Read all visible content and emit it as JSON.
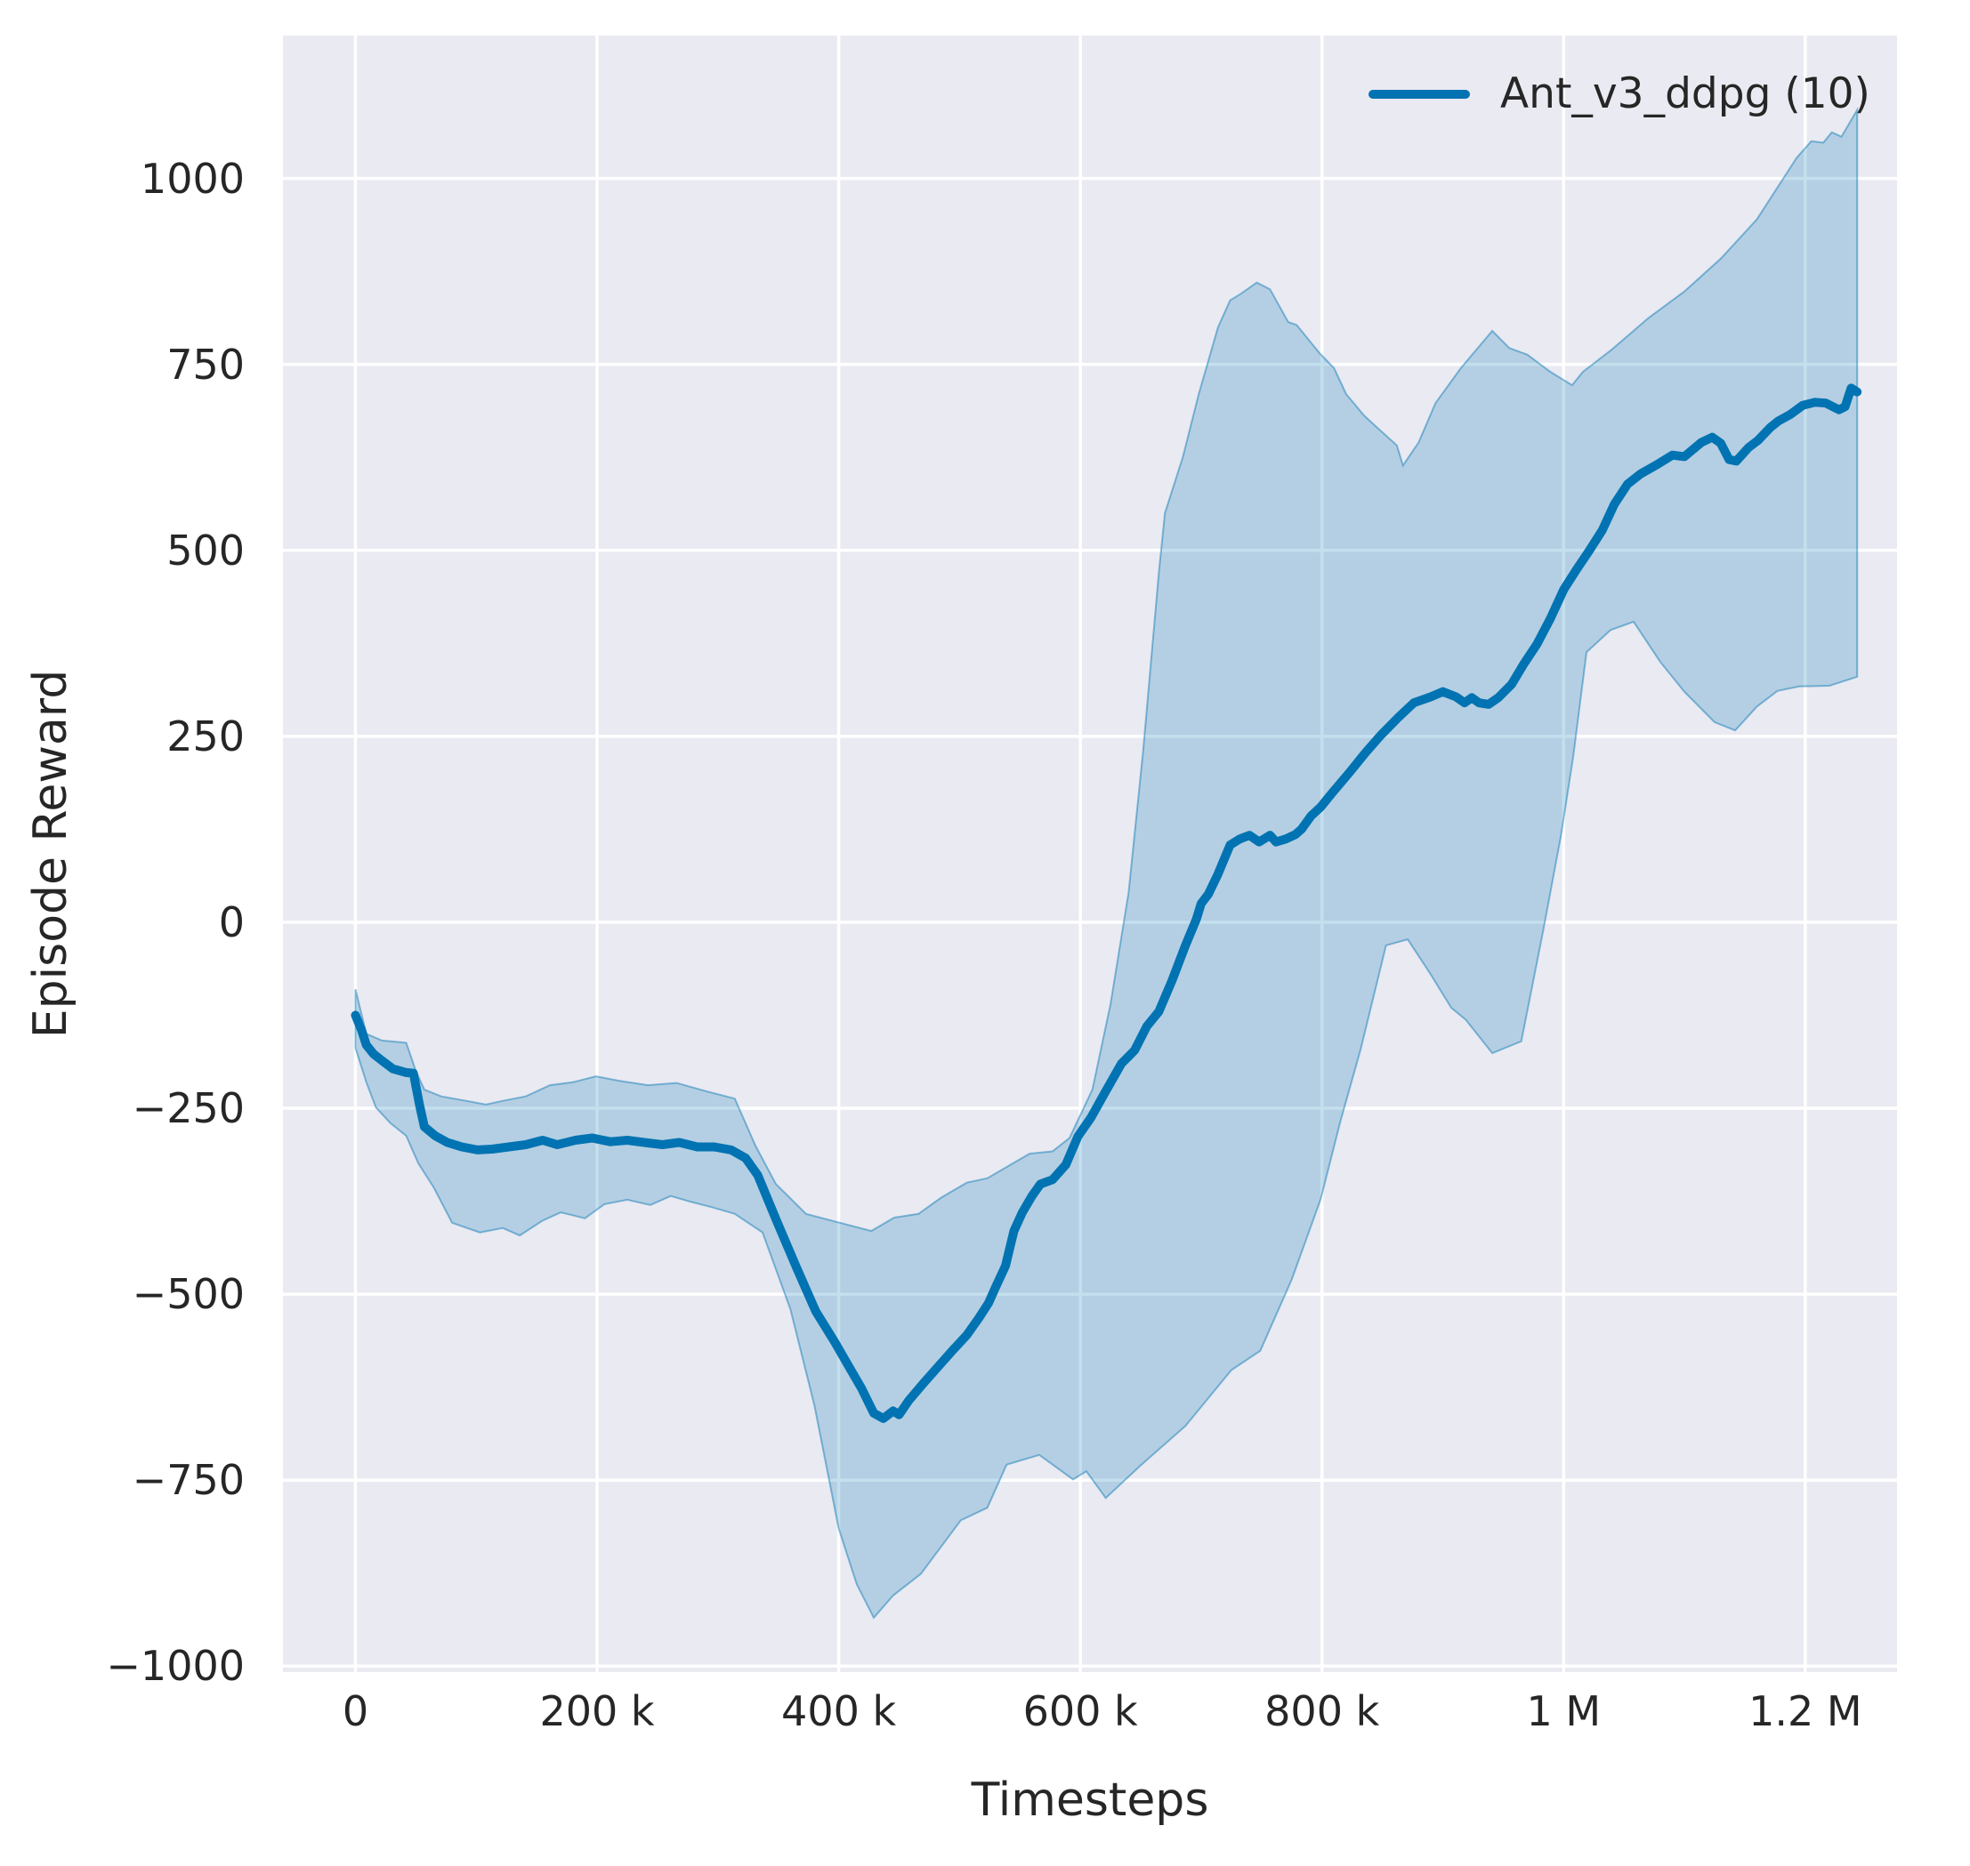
{
  "colors": {
    "line": "#0173b2",
    "band_fill_opacity": 0.23,
    "band_edge_opacity": 0.45,
    "axes_background": "#eaeaf2",
    "grid": "#ffffff",
    "text": "#262626",
    "figure_background": "#ffffff"
  },
  "chart_data": {
    "type": "line",
    "title": "",
    "xlabel": "Timesteps",
    "ylabel": "Episode Reward",
    "grid": true,
    "legend_position": "top-right",
    "legend": [
      {
        "label": "Ant_v3_ddpg (10)",
        "color": "#0173b2"
      }
    ],
    "xlim": [
      -60000,
      1276000
    ],
    "ylim": [
      -1008,
      1192
    ],
    "x_ticks": [
      {
        "value": 0,
        "label": "0"
      },
      {
        "value": 200000,
        "label": "200 k"
      },
      {
        "value": 400000,
        "label": "400 k"
      },
      {
        "value": 600000,
        "label": "600 k"
      },
      {
        "value": 800000,
        "label": "800 k"
      },
      {
        "value": 1000000,
        "label": "1 M"
      },
      {
        "value": 1200000,
        "label": "1.2 M"
      }
    ],
    "y_ticks": [
      {
        "value": 1000,
        "label": "1000"
      },
      {
        "value": 750,
        "label": "750"
      },
      {
        "value": 500,
        "label": "500"
      },
      {
        "value": 250,
        "label": "250"
      },
      {
        "value": 0,
        "label": "0"
      },
      {
        "value": -250,
        "label": "−250"
      },
      {
        "value": -500,
        "label": "−500"
      },
      {
        "value": -750,
        "label": "−750"
      },
      {
        "value": -1000,
        "label": "−1000"
      }
    ],
    "series": [
      {
        "name": "Ant_v3_ddpg (10)",
        "color": "#0173b2",
        "mean": [
          [
            0,
            -125
          ],
          [
            5000,
            -145
          ],
          [
            9000,
            -165
          ],
          [
            15000,
            -177
          ],
          [
            22000,
            -186
          ],
          [
            31000,
            -197
          ],
          [
            42000,
            -202
          ],
          [
            48000,
            -203
          ],
          [
            53000,
            -245
          ],
          [
            57000,
            -275
          ],
          [
            66000,
            -287
          ],
          [
            76000,
            -296
          ],
          [
            88000,
            -302
          ],
          [
            101000,
            -306
          ],
          [
            113000,
            -305
          ],
          [
            127000,
            -302
          ],
          [
            141000,
            -299
          ],
          [
            155000,
            -293
          ],
          [
            167000,
            -299
          ],
          [
            182000,
            -293
          ],
          [
            196000,
            -290
          ],
          [
            211000,
            -295
          ],
          [
            225000,
            -293
          ],
          [
            239000,
            -296
          ],
          [
            254000,
            -299
          ],
          [
            268000,
            -296
          ],
          [
            283000,
            -302
          ],
          [
            297000,
            -302
          ],
          [
            311000,
            -306
          ],
          [
            323000,
            -317
          ],
          [
            333000,
            -340
          ],
          [
            348000,
            -399
          ],
          [
            365000,
            -464
          ],
          [
            381000,
            -523
          ],
          [
            397000,
            -565
          ],
          [
            408000,
            -596
          ],
          [
            419000,
            -627
          ],
          [
            429000,
            -660
          ],
          [
            437000,
            -667
          ],
          [
            445000,
            -657
          ],
          [
            450000,
            -662
          ],
          [
            458000,
            -643
          ],
          [
            470000,
            -620
          ],
          [
            482000,
            -598
          ],
          [
            494000,
            -576
          ],
          [
            506000,
            -555
          ],
          [
            516000,
            -532
          ],
          [
            524000,
            -512
          ],
          [
            530000,
            -490
          ],
          [
            538000,
            -462
          ],
          [
            545000,
            -415
          ],
          [
            552000,
            -390
          ],
          [
            560000,
            -368
          ],
          [
            567000,
            -352
          ],
          [
            577000,
            -346
          ],
          [
            588000,
            -326
          ],
          [
            598000,
            -288
          ],
          [
            609000,
            -262
          ],
          [
            620000,
            -230
          ],
          [
            634000,
            -190
          ],
          [
            645000,
            -172
          ],
          [
            655000,
            -140
          ],
          [
            665000,
            -120
          ],
          [
            676000,
            -78
          ],
          [
            687000,
            -31
          ],
          [
            696000,
            4
          ],
          [
            700000,
            25
          ],
          [
            706000,
            38
          ],
          [
            714000,
            65
          ],
          [
            724000,
            104
          ],
          [
            732000,
            112
          ],
          [
            740000,
            117
          ],
          [
            748000,
            108
          ],
          [
            757000,
            117
          ],
          [
            762000,
            108
          ],
          [
            770000,
            112
          ],
          [
            778000,
            118
          ],
          [
            783000,
            125
          ],
          [
            791000,
            143
          ],
          [
            799000,
            155
          ],
          [
            809000,
            175
          ],
          [
            822000,
            200
          ],
          [
            836000,
            228
          ],
          [
            849000,
            252
          ],
          [
            863000,
            275
          ],
          [
            876000,
            295
          ],
          [
            890000,
            303
          ],
          [
            900000,
            310
          ],
          [
            911000,
            303
          ],
          [
            918000,
            295
          ],
          [
            924000,
            302
          ],
          [
            930000,
            295
          ],
          [
            938000,
            293
          ],
          [
            946000,
            302
          ],
          [
            957000,
            320
          ],
          [
            967000,
            347
          ],
          [
            978000,
            374
          ],
          [
            989000,
            408
          ],
          [
            1000000,
            447
          ],
          [
            1011000,
            475
          ],
          [
            1021000,
            499
          ],
          [
            1032000,
            527
          ],
          [
            1042000,
            562
          ],
          [
            1053000,
            589
          ],
          [
            1064000,
            603
          ],
          [
            1077000,
            615
          ],
          [
            1090000,
            628
          ],
          [
            1100000,
            626
          ],
          [
            1114000,
            645
          ],
          [
            1123000,
            652
          ],
          [
            1130000,
            644
          ],
          [
            1137000,
            622
          ],
          [
            1143000,
            620
          ],
          [
            1153000,
            638
          ],
          [
            1161000,
            648
          ],
          [
            1171000,
            665
          ],
          [
            1178000,
            674
          ],
          [
            1188000,
            683
          ],
          [
            1198000,
            695
          ],
          [
            1208000,
            699
          ],
          [
            1217000,
            698
          ],
          [
            1228000,
            689
          ],
          [
            1233000,
            693
          ],
          [
            1238000,
            718
          ],
          [
            1243000,
            713
          ]
        ],
        "band_upper": [
          [
            0,
            -90
          ],
          [
            9000,
            -150
          ],
          [
            22000,
            -159
          ],
          [
            42000,
            -162
          ],
          [
            50000,
            -200
          ],
          [
            57000,
            -225
          ],
          [
            71000,
            -234
          ],
          [
            88000,
            -239
          ],
          [
            108000,
            -245
          ],
          [
            122000,
            -240
          ],
          [
            141000,
            -234
          ],
          [
            161000,
            -219
          ],
          [
            180000,
            -215
          ],
          [
            199000,
            -207
          ],
          [
            218000,
            -213
          ],
          [
            242000,
            -219
          ],
          [
            266000,
            -216
          ],
          [
            290000,
            -227
          ],
          [
            314000,
            -237
          ],
          [
            331000,
            -300
          ],
          [
            348000,
            -352
          ],
          [
            373000,
            -392
          ],
          [
            401000,
            -404
          ],
          [
            427000,
            -415
          ],
          [
            446000,
            -397
          ],
          [
            466000,
            -392
          ],
          [
            485000,
            -370
          ],
          [
            506000,
            -350
          ],
          [
            523000,
            -344
          ],
          [
            539000,
            -329
          ],
          [
            558000,
            -311
          ],
          [
            577000,
            -308
          ],
          [
            591000,
            -290
          ],
          [
            610000,
            -225
          ],
          [
            625000,
            -110
          ],
          [
            640000,
            40
          ],
          [
            652000,
            230
          ],
          [
            665000,
            470
          ],
          [
            670000,
            550
          ],
          [
            685000,
            626
          ],
          [
            698000,
            710
          ],
          [
            714000,
            800
          ],
          [
            724000,
            836
          ],
          [
            733000,
            845
          ],
          [
            746000,
            860
          ],
          [
            757000,
            851
          ],
          [
            772000,
            807
          ],
          [
            779000,
            803
          ],
          [
            788000,
            785
          ],
          [
            798000,
            765
          ],
          [
            810000,
            745
          ],
          [
            820000,
            710
          ],
          [
            835000,
            681
          ],
          [
            847000,
            663
          ],
          [
            862000,
            641
          ],
          [
            867000,
            614
          ],
          [
            880000,
            645
          ],
          [
            894000,
            698
          ],
          [
            915000,
            745
          ],
          [
            941000,
            795
          ],
          [
            955000,
            772
          ],
          [
            970000,
            763
          ],
          [
            989000,
            740
          ],
          [
            1007000,
            722
          ],
          [
            1016000,
            740
          ],
          [
            1040000,
            770
          ],
          [
            1070000,
            812
          ],
          [
            1100000,
            848
          ],
          [
            1130000,
            892
          ],
          [
            1160000,
            945
          ],
          [
            1193000,
            1028
          ],
          [
            1205000,
            1050
          ],
          [
            1215000,
            1048
          ],
          [
            1222000,
            1062
          ],
          [
            1230000,
            1056
          ],
          [
            1243000,
            1092
          ]
        ],
        "band_lower": [
          [
            0,
            -169
          ],
          [
            9000,
            -215
          ],
          [
            17000,
            -249
          ],
          [
            29000,
            -270
          ],
          [
            42000,
            -287
          ],
          [
            52000,
            -324
          ],
          [
            65000,
            -357
          ],
          [
            80000,
            -404
          ],
          [
            103000,
            -417
          ],
          [
            122000,
            -411
          ],
          [
            136000,
            -421
          ],
          [
            155000,
            -401
          ],
          [
            170000,
            -390
          ],
          [
            190000,
            -398
          ],
          [
            206000,
            -379
          ],
          [
            225000,
            -373
          ],
          [
            244000,
            -380
          ],
          [
            261000,
            -368
          ],
          [
            278000,
            -376
          ],
          [
            295000,
            -383
          ],
          [
            314000,
            -392
          ],
          [
            337000,
            -417
          ],
          [
            360000,
            -520
          ],
          [
            380000,
            -650
          ],
          [
            400000,
            -815
          ],
          [
            415000,
            -890
          ],
          [
            429000,
            -935
          ],
          [
            445000,
            -905
          ],
          [
            468000,
            -876
          ],
          [
            501000,
            -804
          ],
          [
            523000,
            -787
          ],
          [
            539000,
            -729
          ],
          [
            566000,
            -716
          ],
          [
            594000,
            -749
          ],
          [
            605000,
            -738
          ],
          [
            621000,
            -774
          ],
          [
            650000,
            -730
          ],
          [
            687000,
            -677
          ],
          [
            725000,
            -602
          ],
          [
            749000,
            -576
          ],
          [
            775000,
            -480
          ],
          [
            799000,
            -372
          ],
          [
            815000,
            -269
          ],
          [
            832000,
            -171
          ],
          [
            853000,
            -31
          ],
          [
            871000,
            -23
          ],
          [
            890000,
            -70
          ],
          [
            907000,
            -115
          ],
          [
            919000,
            -131
          ],
          [
            941000,
            -176
          ],
          [
            965000,
            -160
          ],
          [
            983000,
            -12
          ],
          [
            998000,
            118
          ],
          [
            1008000,
            223
          ],
          [
            1019000,
            363
          ],
          [
            1039000,
            393
          ],
          [
            1058000,
            404
          ],
          [
            1080000,
            350
          ],
          [
            1100000,
            310
          ],
          [
            1125000,
            269
          ],
          [
            1142000,
            258
          ],
          [
            1160000,
            290
          ],
          [
            1177000,
            311
          ],
          [
            1195000,
            317
          ],
          [
            1220000,
            318
          ],
          [
            1243000,
            330
          ]
        ]
      }
    ]
  }
}
